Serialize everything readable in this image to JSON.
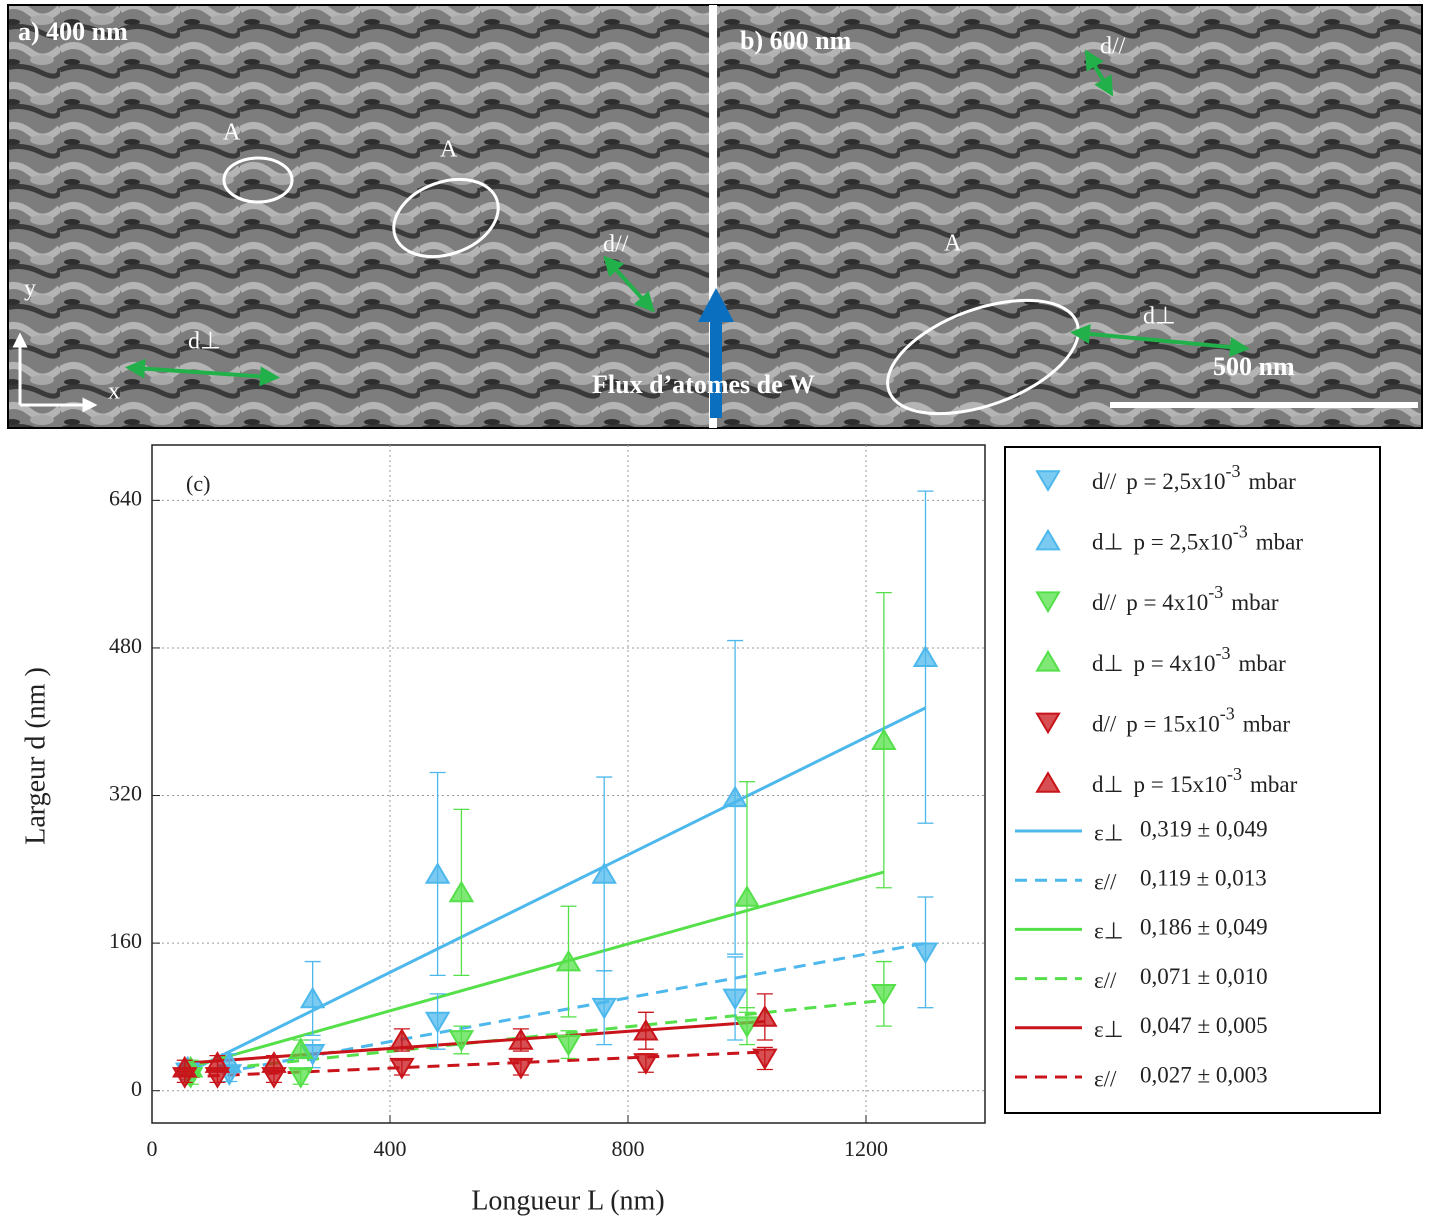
{
  "images": {
    "panel_a": "a) 400 nm",
    "panel_b": "b) 600 nm",
    "a_marks": [
      "A",
      "A"
    ],
    "b_mark": "A",
    "d_par": "d//",
    "d_perp": "d⊥",
    "axis_y": "y",
    "axis_x": "x",
    "flux": "Flux d’atomes de W",
    "scale": "500 nm"
  },
  "chart_data": {
    "type": "scatter",
    "annotation": "(c)",
    "x_label": "Longueur L (nm)",
    "y_label": "Largeur d (nm )",
    "xlim": [
      0,
      1400
    ],
    "xticks": [
      0,
      400,
      800,
      1200
    ],
    "ylim": [
      -35,
      700
    ],
    "yticks": [
      0,
      160,
      320,
      480,
      640
    ],
    "grid": true,
    "series": [
      {
        "name": "d//",
        "pressure": "p = 2,5x10",
        "exponent": "-3",
        "unit": "mbar",
        "color": "#4db8ec",
        "marker": "down",
        "x": [
          60,
          130,
          270,
          480,
          760,
          980,
          1300
        ],
        "values": [
          20,
          18,
          40,
          75,
          90,
          100,
          150
        ],
        "errors": [
          8,
          8,
          15,
          30,
          40,
          45,
          60
        ]
      },
      {
        "name": "d⊥",
        "pressure": "p = 2,5x10",
        "exponent": "-3",
        "unit": "mbar",
        "color": "#4db8ec",
        "marker": "up",
        "x": [
          60,
          130,
          270,
          480,
          760,
          980,
          1300
        ],
        "values": [
          25,
          30,
          100,
          235,
          235,
          318,
          470
        ],
        "errors": [
          8,
          10,
          40,
          110,
          105,
          170,
          180
        ]
      },
      {
        "name": "d//",
        "pressure": "p = 4x10",
        "exponent": "-3",
        "unit": "mbar",
        "color": "#55e04a",
        "marker": "down",
        "x": [
          65,
          250,
          520,
          700,
          1000,
          1230
        ],
        "values": [
          15,
          15,
          55,
          50,
          70,
          105
        ],
        "errors": [
          8,
          8,
          15,
          15,
          20,
          35
        ]
      },
      {
        "name": "d⊥",
        "pressure": "p = 4x10",
        "exponent": "-3",
        "unit": "mbar",
        "color": "#55e04a",
        "marker": "up",
        "x": [
          65,
          250,
          520,
          700,
          1000,
          1230
        ],
        "values": [
          25,
          45,
          215,
          140,
          210,
          380
        ],
        "errors": [
          8,
          10,
          90,
          60,
          125,
          160
        ]
      },
      {
        "name": "d//",
        "pressure": "p = 15x10",
        "exponent": "-3",
        "unit": "mbar",
        "color": "#c8141a",
        "marker": "down",
        "x": [
          55,
          110,
          205,
          420,
          620,
          830,
          1030
        ],
        "values": [
          15,
          15,
          15,
          25,
          25,
          30,
          35
        ],
        "errors": [
          6,
          6,
          6,
          8,
          8,
          10,
          12
        ]
      },
      {
        "name": "d⊥",
        "pressure": "p = 15x10",
        "exponent": "-3",
        "unit": "mbar",
        "color": "#c8141a",
        "marker": "up",
        "x": [
          55,
          110,
          205,
          420,
          620,
          830,
          1030
        ],
        "values": [
          25,
          30,
          30,
          55,
          55,
          65,
          80
        ],
        "errors": [
          8,
          8,
          8,
          12,
          12,
          20,
          25
        ]
      }
    ],
    "fits": [
      {
        "name": "ε⊥",
        "label": "0,319 ± 0,049",
        "color": "#4db8ec",
        "dashed": false,
        "x": [
          60,
          1300
        ],
        "values": [
          20,
          415
        ]
      },
      {
        "name": "ε//",
        "label": "0,119 ± 0,013",
        "color": "#4db8ec",
        "dashed": true,
        "x": [
          120,
          1300
        ],
        "values": [
          20,
          160
        ]
      },
      {
        "name": "ε⊥",
        "label": "0,186 ± 0,049",
        "color": "#55e04a",
        "dashed": false,
        "x": [
          60,
          1230
        ],
        "values": [
          25,
          237
        ]
      },
      {
        "name": "ε//",
        "label": "0,071 ± 0,010",
        "color": "#55e04a",
        "dashed": true,
        "x": [
          60,
          1230
        ],
        "values": [
          20,
          98
        ]
      },
      {
        "name": "ε⊥",
        "label": "0,047 ± 0,005",
        "color": "#c8141a",
        "dashed": false,
        "x": [
          60,
          1030
        ],
        "values": [
          30,
          75
        ]
      },
      {
        "name": "ε//",
        "label": "0,027 ± 0,003",
        "color": "#c8141a",
        "dashed": true,
        "x": [
          60,
          1030
        ],
        "values": [
          15,
          42
        ]
      }
    ]
  }
}
